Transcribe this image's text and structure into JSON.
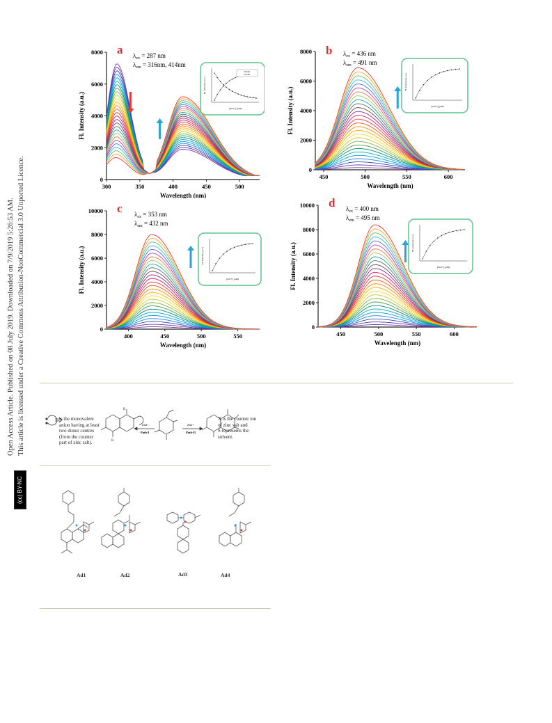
{
  "sidebar": {
    "line1": "Open Access Article. Published on 08 July 2019. Downloaded on 7/9/2019 5:26:53 AM.",
    "line2": "This article is licensed under a Creative Commons Attribution-NonCommercial 3.0 Unported Licence.",
    "badge": "(cc) BY-NC"
  },
  "colors": {
    "arrow_down": "#e53935",
    "arrow_up": "#29a3dc",
    "inset_border": "#5cc38c",
    "panel_letter": "#e03030"
  },
  "figure": {
    "panels": [
      {
        "id": "a",
        "letter": "a",
        "ex_line": "λex = 287 nm",
        "em_line": "λem = 316nm, 414nm",
        "ex_label": "λ",
        "ex_sub": "ex",
        "ex_val": "= 287 nm",
        "em_label": "λ",
        "em_sub": "em",
        "em_val": "= 316nm, 414nm",
        "ylabel": "Fl. Intensity (a.u.)",
        "xlabel": "Wavelength (nm)",
        "xticks": [
          "300",
          "350",
          "400",
          "450",
          "500"
        ],
        "yticks": [
          "0",
          "2000",
          "4000",
          "6000",
          "8000"
        ],
        "inset_legend": [
          "316 nm",
          "414 nm"
        ],
        "inset_xlabel": "[Zn2+] (μM)",
        "inset_ylabel": "FL Intensity (a.u.)"
      },
      {
        "id": "b",
        "letter": "b",
        "ex_label": "λ",
        "ex_sub": "ex",
        "ex_val": "= 436 nm",
        "em_label": "λ",
        "em_sub": "em",
        "em_val": "= 491 nm",
        "ylabel": "Fl. Intensity (a.u.)",
        "xlabel": "Wavelength (nm)",
        "xticks": [
          "450",
          "500",
          "550",
          "600"
        ],
        "yticks": [
          "0",
          "2000",
          "4000",
          "6000",
          "8000"
        ],
        "inset_xlabel": "[Zn2+] (μM)",
        "inset_ylabel": "FL Intensity (a.u.)"
      },
      {
        "id": "c",
        "letter": "c",
        "ex_label": "λ",
        "ex_sub": "ex",
        "ex_val": "= 353 nm",
        "em_label": "λ",
        "em_sub": "em",
        "em_val": "= 432 nm",
        "ylabel": "Fl. Intensity (a.u.)",
        "xlabel": "Wavelength (nm)",
        "xticks": [
          "400",
          "450",
          "500",
          "550"
        ],
        "yticks": [
          "0",
          "2000",
          "4000",
          "6000",
          "8000",
          "10000"
        ],
        "inset_xlabel": "[Zn2+] (μM)",
        "inset_ylabel": "FL Intensity (a.u.)"
      },
      {
        "id": "d",
        "letter": "d",
        "ex_label": "λ",
        "ex_sub": "ex",
        "ex_val": "= 400 nm",
        "em_label": "λ",
        "em_sub": "em",
        "em_val": "= 495 nm",
        "ylabel": "Fl. Intensity (a.u.)",
        "xlabel": "Wavelength (nm)",
        "xticks": [
          "450",
          "500",
          "550",
          "600"
        ],
        "yticks": [
          "0",
          "2000",
          "4000",
          "6000",
          "8000",
          "10000"
        ],
        "inset_xlabel": "[Zn2+] (μM)",
        "inset_ylabel": "FL Intensity (a.u.)"
      }
    ]
  },
  "chart_data": [
    {
      "type": "line",
      "panel": "a",
      "xlim": [
        300,
        530
      ],
      "ylim": [
        0,
        8000
      ],
      "excitation_nm": 287,
      "emission_nm": [
        316,
        414
      ],
      "peak1_nm": 316,
      "peak1_max": 7100,
      "peak1_min": 1200,
      "peak2_nm": 414,
      "peak2_max": 5200,
      "peak2_min": 1900,
      "isosbestic_nm": 365,
      "n_curves": 28,
      "inset": {
        "type": "line",
        "series": [
          {
            "name": "316 nm",
            "trend": "decreasing"
          },
          {
            "name": "414 nm",
            "trend": "increasing"
          }
        ]
      }
    },
    {
      "type": "line",
      "panel": "b",
      "xlim": [
        440,
        620
      ],
      "ylim": [
        0,
        8000
      ],
      "excitation_nm": 436,
      "emission_nm": 491,
      "peak_nm": 491,
      "peak_max": 6900,
      "peak_min": 150,
      "n_curves": 28,
      "inset": {
        "type": "line",
        "trend": "increasing"
      }
    },
    {
      "type": "line",
      "panel": "c",
      "xlim": [
        370,
        580
      ],
      "ylim": [
        0,
        10000
      ],
      "excitation_nm": 353,
      "emission_nm": 432,
      "peak_nm": 432,
      "peak_max": 8000,
      "peak_min": 200,
      "n_curves": 28,
      "inset": {
        "type": "line",
        "trend": "increasing"
      }
    },
    {
      "type": "line",
      "panel": "d",
      "xlim": [
        420,
        630
      ],
      "ylim": [
        0,
        10000
      ],
      "excitation_nm": 400,
      "emission_nm": 495,
      "peak_nm": 495,
      "peak_max": 8400,
      "peak_min": 200,
      "n_curves": 28,
      "inset": {
        "type": "line",
        "trend": "increasing"
      }
    }
  ],
  "scheme": {
    "left_text": [
      "is the monovalent",
      "anion having at least",
      "two donor centres",
      "(from the counter",
      "part of zinc salt)."
    ],
    "path1": "Path-I",
    "path2": "Path-II",
    "zn1": "Zn2+",
    "zn2": "Zn2+",
    "right_text": [
      "X is the counter ion",
      "of zinc salt and",
      "S represents the",
      "solvent."
    ]
  },
  "structures": {
    "labels": [
      "Ad1",
      "Ad2",
      "Ad3",
      "Ad4"
    ]
  }
}
